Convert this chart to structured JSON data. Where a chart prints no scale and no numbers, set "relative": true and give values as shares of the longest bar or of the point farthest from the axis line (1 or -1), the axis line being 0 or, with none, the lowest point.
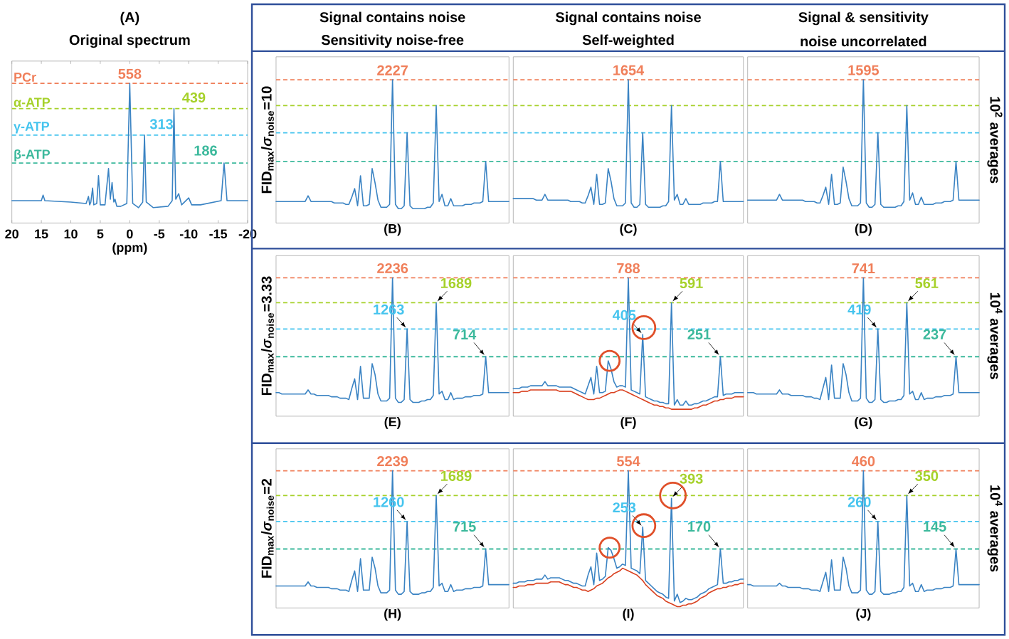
{
  "chart_data": [
    {
      "type": "line",
      "title": "(A)",
      "subtitle": "Original spectrum",
      "xlabel": "(ppm)",
      "relative": true,
      "xlim": [
        20,
        -20
      ],
      "xticks": [
        20,
        15,
        10,
        5,
        0,
        -5,
        -10,
        -15,
        -20
      ],
      "tick_labels": "x",
      "x": [
        20,
        15,
        14.7,
        14.4,
        10,
        7.4,
        7.0,
        6.8,
        6.6,
        6.3,
        6.1,
        5.6,
        5.3,
        5.0,
        4.2,
        3.6,
        3.3,
        3.0,
        2.7,
        2.5,
        2.2,
        1.5,
        0.5,
        0,
        -0.5,
        -1.5,
        -2.2,
        -2.5,
        -2.8,
        -4,
        -6.5,
        -7.2,
        -7.5,
        -7.8,
        -8.3,
        -8.8,
        -10,
        -10.5,
        -12,
        -15.5,
        -16,
        -16.5,
        -18,
        -20
      ],
      "series": [
        {
          "color": "#3a83c3",
          "values": [
            0.16,
            0.16,
            0.2,
            0.16,
            0.15,
            0.14,
            0.19,
            0.13,
            0.15,
            0.25,
            0.13,
            0.14,
            0.34,
            0.13,
            0.13,
            0.39,
            0.17,
            0.29,
            0.15,
            0.17,
            0.12,
            0.12,
            0.14,
            1.0,
            0.14,
            0.11,
            0.15,
            0.63,
            0.15,
            0.11,
            0.12,
            0.16,
            0.82,
            0.17,
            0.21,
            0.13,
            0.18,
            0.13,
            0.13,
            0.16,
            0.43,
            0.16,
            0.16,
            0.16
          ]
        }
      ],
      "ref_lines": [
        {
          "axis": "y",
          "value": 1.0,
          "label": "PCr",
          "color": "#f07f5a",
          "line_style": "dashed"
        },
        {
          "axis": "y",
          "value": 0.82,
          "label": "α-ATP",
          "color": "#a6d12a",
          "line_style": "dashed"
        },
        {
          "axis": "y",
          "value": 0.63,
          "label": "γ-ATP",
          "color": "#45c4ee",
          "line_style": "dashed"
        },
        {
          "axis": "y",
          "value": 0.43,
          "label": "β-ATP",
          "color": "#3cb99c",
          "line_style": "dashed"
        }
      ],
      "annotations": [
        {
          "text": "558",
          "x": 0,
          "y": 1.0
        },
        {
          "text": "439",
          "x": -7.5,
          "y": 0.82
        },
        {
          "text": "313",
          "x": -2.5,
          "y": 0.63
        },
        {
          "text": "186",
          "x": -16,
          "y": 0.43
        }
      ]
    },
    {
      "type": "line",
      "title": "Signal contains noise",
      "subtitle": "Sensitivity noise-free",
      "xlabel": "(B)",
      "ylabel": "FID$_{max}$/*σ*$_{noise}$=10",
      "relative": true,
      "categories": [
        null,
        null,
        null,
        null,
        null,
        null,
        null,
        null,
        null,
        null,
        null,
        null,
        null,
        null,
        null,
        null,
        null,
        null,
        null,
        null,
        null,
        null,
        null,
        null,
        null,
        null,
        null,
        null,
        null,
        null,
        null,
        null,
        null,
        null,
        null,
        null,
        null,
        null,
        null,
        null,
        null,
        null,
        null,
        null,
        null,
        null,
        null,
        null,
        null,
        null,
        null,
        null,
        null,
        null,
        null,
        null,
        null,
        null,
        null,
        null,
        null,
        null,
        null,
        null,
        null,
        null,
        null,
        null,
        null,
        null,
        null,
        null,
        null,
        null,
        null,
        null,
        null,
        null,
        null,
        null,
        null
      ],
      "series": [
        {
          "color": "#3a83c3",
          "values": [
            0.15,
            0.15,
            0.15,
            0.15,
            0.15,
            0.15,
            0.15,
            0.15,
            0.15,
            0.15,
            0.15,
            0.19,
            0.15,
            0.15,
            0.15,
            0.15,
            0.15,
            0.15,
            0.15,
            0.15,
            0.14,
            0.14,
            0.14,
            0.14,
            0.13,
            0.13,
            0.18,
            0.24,
            0.12,
            0.33,
            0.12,
            0.12,
            0.13,
            0.38,
            0.28,
            0.16,
            0.11,
            0.11,
            0.11,
            0.13,
            1.0,
            0.13,
            0.1,
            0.1,
            0.12,
            0.63,
            0.12,
            0.1,
            0.1,
            0.1,
            0.1,
            0.1,
            0.11,
            0.11,
            0.14,
            0.82,
            0.15,
            0.2,
            0.12,
            0.12,
            0.17,
            0.12,
            0.12,
            0.12,
            0.12,
            0.13,
            0.13,
            0.13,
            0.14,
            0.14,
            0.14,
            0.15,
            0.43,
            0.15,
            0.15,
            0.15,
            0.15,
            0.15,
            0.15,
            0.15,
            0.15
          ]
        }
      ],
      "ref_lines": [
        {
          "axis": "y",
          "value": 1.0,
          "color": "#f07f5a",
          "line_style": "dashed"
        },
        {
          "axis": "y",
          "value": 0.82,
          "color": "#a6d12a",
          "line_style": "dashed"
        },
        {
          "axis": "y",
          "value": 0.63,
          "color": "#45c4ee",
          "line_style": "dashed"
        },
        {
          "axis": "y",
          "value": 0.43,
          "color": "#3cb99c",
          "line_style": "dashed"
        }
      ],
      "annotations": [
        {
          "text": "2227",
          "y": 1.0
        }
      ]
    },
    {
      "type": "line",
      "title": "Signal contains noise",
      "subtitle": "Self-weighted",
      "xlabel": "(C)",
      "relative": true,
      "categories": [
        null,
        null,
        null,
        null,
        null,
        null,
        null,
        null,
        null,
        null,
        null,
        null,
        null,
        null,
        null,
        null,
        null,
        null,
        null,
        null,
        null,
        null,
        null,
        null,
        null,
        null,
        null,
        null,
        null,
        null,
        null,
        null,
        null,
        null,
        null,
        null,
        null,
        null,
        null,
        null,
        null,
        null,
        null,
        null,
        null,
        null,
        null,
        null,
        null,
        null,
        null,
        null,
        null,
        null,
        null,
        null,
        null,
        null,
        null,
        null,
        null,
        null,
        null,
        null,
        null,
        null,
        null,
        null,
        null,
        null,
        null,
        null,
        null,
        null,
        null,
        null,
        null,
        null,
        null,
        null,
        null
      ],
      "series": [
        {
          "color": "#3a83c3",
          "values": [
            0.17,
            0.17,
            0.17,
            0.17,
            0.17,
            0.17,
            0.17,
            0.17,
            0.16,
            0.16,
            0.16,
            0.2,
            0.16,
            0.16,
            0.16,
            0.16,
            0.16,
            0.16,
            0.16,
            0.16,
            0.15,
            0.15,
            0.15,
            0.15,
            0.14,
            0.14,
            0.19,
            0.25,
            0.13,
            0.34,
            0.13,
            0.13,
            0.14,
            0.38,
            0.29,
            0.17,
            0.12,
            0.12,
            0.12,
            0.14,
            1.0,
            0.14,
            0.11,
            0.11,
            0.13,
            0.63,
            0.13,
            0.11,
            0.11,
            0.11,
            0.11,
            0.11,
            0.12,
            0.12,
            0.15,
            0.82,
            0.16,
            0.2,
            0.13,
            0.13,
            0.17,
            0.13,
            0.13,
            0.13,
            0.13,
            0.13,
            0.14,
            0.14,
            0.14,
            0.14,
            0.15,
            0.15,
            0.43,
            0.15,
            0.15,
            0.15,
            0.15,
            0.15,
            0.15,
            0.15,
            0.15
          ]
        }
      ],
      "ref_lines": [
        {
          "axis": "y",
          "value": 1.0,
          "color": "#f07f5a",
          "line_style": "dashed"
        },
        {
          "axis": "y",
          "value": 0.82,
          "color": "#a6d12a",
          "line_style": "dashed"
        },
        {
          "axis": "y",
          "value": 0.63,
          "color": "#45c4ee",
          "line_style": "dashed"
        },
        {
          "axis": "y",
          "value": 0.43,
          "color": "#3cb99c",
          "line_style": "dashed"
        }
      ],
      "annotations": [
        {
          "text": "1654",
          "y": 1.0
        }
      ]
    },
    {
      "type": "line",
      "title": "Signal & sensitivity",
      "subtitle": "noise uncorrelated",
      "xlabel": "(D)",
      "y2label": "10$^{2}$ averages",
      "relative": true,
      "categories": [
        null,
        null,
        null,
        null,
        null,
        null,
        null,
        null,
        null,
        null,
        null,
        null,
        null,
        null,
        null,
        null,
        null,
        null,
        null,
        null,
        null,
        null,
        null,
        null,
        null,
        null,
        null,
        null,
        null,
        null,
        null,
        null,
        null,
        null,
        null,
        null,
        null,
        null,
        null,
        null,
        null,
        null,
        null,
        null,
        null,
        null,
        null,
        null,
        null,
        null,
        null,
        null,
        null,
        null,
        null,
        null,
        null,
        null,
        null,
        null,
        null,
        null,
        null,
        null,
        null,
        null,
        null,
        null,
        null,
        null,
        null,
        null,
        null,
        null,
        null,
        null,
        null,
        null,
        null,
        null,
        null
      ],
      "series": [
        {
          "color": "#3a83c3",
          "values": [
            0.16,
            0.16,
            0.16,
            0.16,
            0.16,
            0.16,
            0.16,
            0.16,
            0.16,
            0.16,
            0.16,
            0.2,
            0.16,
            0.16,
            0.16,
            0.16,
            0.16,
            0.16,
            0.16,
            0.16,
            0.15,
            0.15,
            0.15,
            0.15,
            0.14,
            0.14,
            0.19,
            0.25,
            0.13,
            0.34,
            0.13,
            0.13,
            0.14,
            0.39,
            0.29,
            0.17,
            0.12,
            0.12,
            0.12,
            0.14,
            1.0,
            0.14,
            0.11,
            0.11,
            0.13,
            0.63,
            0.13,
            0.11,
            0.11,
            0.11,
            0.11,
            0.11,
            0.12,
            0.12,
            0.15,
            0.82,
            0.16,
            0.21,
            0.13,
            0.13,
            0.18,
            0.13,
            0.13,
            0.13,
            0.13,
            0.14,
            0.14,
            0.14,
            0.15,
            0.15,
            0.15,
            0.16,
            0.43,
            0.16,
            0.16,
            0.16,
            0.16,
            0.16,
            0.16,
            0.16,
            0.16
          ]
        }
      ],
      "ref_lines": [
        {
          "axis": "y",
          "value": 1.0,
          "color": "#f07f5a",
          "line_style": "dashed"
        },
        {
          "axis": "y",
          "value": 0.82,
          "color": "#a6d12a",
          "line_style": "dashed"
        },
        {
          "axis": "y",
          "value": 0.63,
          "color": "#45c4ee",
          "line_style": "dashed"
        },
        {
          "axis": "y",
          "value": 0.43,
          "color": "#3cb99c",
          "line_style": "dashed"
        }
      ],
      "annotations": [
        {
          "text": "1595",
          "y": 1.0
        }
      ]
    },
    {
      "type": "line",
      "xlabel": "(E)",
      "ylabel": "FID$_{max}$/*σ*$_{noise}$=3.33",
      "relative": true,
      "categories": [
        null,
        null,
        null,
        null,
        null,
        null,
        null,
        null,
        null,
        null,
        null,
        null,
        null,
        null,
        null,
        null,
        null,
        null,
        null,
        null,
        null,
        null,
        null,
        null,
        null,
        null,
        null,
        null,
        null,
        null,
        null,
        null,
        null,
        null,
        null,
        null,
        null,
        null,
        null,
        null,
        null,
        null,
        null,
        null,
        null,
        null,
        null,
        null,
        null,
        null,
        null,
        null,
        null,
        null,
        null,
        null,
        null,
        null,
        null,
        null,
        null,
        null,
        null,
        null,
        null,
        null,
        null,
        null,
        null,
        null,
        null,
        null,
        null,
        null,
        null,
        null,
        null,
        null,
        null,
        null,
        null
      ],
      "series": [
        {
          "color": "#3a83c3",
          "values": [
            0.17,
            0.17,
            0.16,
            0.16,
            0.16,
            0.16,
            0.16,
            0.16,
            0.16,
            0.16,
            0.16,
            0.19,
            0.16,
            0.16,
            0.15,
            0.15,
            0.15,
            0.15,
            0.15,
            0.14,
            0.14,
            0.14,
            0.13,
            0.13,
            0.13,
            0.12,
            0.2,
            0.27,
            0.12,
            0.36,
            0.13,
            0.13,
            0.13,
            0.38,
            0.3,
            0.16,
            0.11,
            0.11,
            0.11,
            0.13,
            1.0,
            0.13,
            0.1,
            0.1,
            0.12,
            0.63,
            0.12,
            0.1,
            0.1,
            0.1,
            0.11,
            0.11,
            0.12,
            0.12,
            0.15,
            0.82,
            0.16,
            0.18,
            0.12,
            0.12,
            0.17,
            0.12,
            0.13,
            0.13,
            0.13,
            0.14,
            0.14,
            0.14,
            0.15,
            0.15,
            0.15,
            0.16,
            0.43,
            0.17,
            0.17,
            0.17,
            0.17,
            0.17,
            0.17,
            0.17,
            0.17
          ]
        }
      ],
      "ref_lines": [
        {
          "axis": "y",
          "value": 1.0,
          "color": "#f07f5a",
          "line_style": "dashed"
        },
        {
          "axis": "y",
          "value": 0.82,
          "color": "#a6d12a",
          "line_style": "dashed"
        },
        {
          "axis": "y",
          "value": 0.63,
          "color": "#45c4ee",
          "line_style": "dashed"
        },
        {
          "axis": "y",
          "value": 0.43,
          "color": "#3cb99c",
          "line_style": "dashed"
        }
      ],
      "annotations": [
        {
          "text": "2236",
          "y": 1.0
        },
        {
          "text": "1689",
          "y": 0.82
        },
        {
          "text": "1263",
          "y": 0.63
        },
        {
          "text": "714",
          "y": 0.43
        }
      ]
    },
    {
      "type": "line",
      "xlabel": "(F)",
      "relative": true,
      "categories": [
        null,
        null,
        null,
        null,
        null,
        null,
        null,
        null,
        null,
        null,
        null,
        null,
        null,
        null,
        null,
        null,
        null,
        null,
        null,
        null,
        null,
        null,
        null,
        null,
        null,
        null,
        null,
        null,
        null,
        null,
        null,
        null,
        null,
        null,
        null,
        null,
        null,
        null,
        null,
        null,
        null,
        null,
        null,
        null,
        null,
        null,
        null,
        null,
        null,
        null,
        null,
        null,
        null,
        null,
        null,
        null,
        null,
        null,
        null,
        null,
        null,
        null,
        null,
        null,
        null,
        null,
        null,
        null,
        null,
        null,
        null,
        null,
        null,
        null,
        null,
        null,
        null,
        null,
        null,
        null,
        null
      ],
      "series": [
        {
          "color": "#d9401f",
          "values": [
            0.17,
            0.17,
            0.17,
            0.18,
            0.18,
            0.18,
            0.19,
            0.19,
            0.19,
            0.19,
            0.19,
            0.19,
            0.19,
            0.19,
            0.19,
            0.19,
            0.18,
            0.18,
            0.18,
            0.18,
            0.18,
            0.17,
            0.16,
            0.15,
            0.14,
            0.13,
            0.12,
            0.12,
            0.12,
            0.13,
            0.13,
            0.14,
            0.15,
            0.16,
            0.17,
            0.17,
            0.18,
            0.19,
            0.19,
            0.18,
            0.17,
            0.16,
            0.15,
            0.14,
            0.13,
            0.12,
            0.11,
            0.1,
            0.09,
            0.08,
            0.08,
            0.07,
            0.07,
            0.06,
            0.06,
            0.05,
            0.05,
            0.05,
            0.05,
            0.05,
            0.05,
            0.05,
            0.05,
            0.06,
            0.06,
            0.07,
            0.08,
            0.08,
            0.09,
            0.1,
            0.11,
            0.11,
            0.12,
            0.12,
            0.13,
            0.13,
            0.13,
            0.14,
            0.14,
            0.14,
            0.14
          ]
        },
        {
          "color": "#3a83c3",
          "values": [
            0.2,
            0.2,
            0.2,
            0.21,
            0.21,
            0.21,
            0.22,
            0.22,
            0.22,
            0.22,
            0.22,
            0.25,
            0.22,
            0.22,
            0.22,
            0.22,
            0.21,
            0.21,
            0.21,
            0.21,
            0.21,
            0.2,
            0.19,
            0.18,
            0.17,
            0.16,
            0.22,
            0.28,
            0.16,
            0.36,
            0.17,
            0.17,
            0.18,
            0.4,
            0.34,
            0.25,
            0.21,
            0.22,
            0.22,
            0.21,
            1.0,
            0.19,
            0.18,
            0.17,
            0.16,
            0.59,
            0.14,
            0.13,
            0.12,
            0.11,
            0.11,
            0.1,
            0.1,
            0.09,
            0.09,
            0.82,
            0.08,
            0.12,
            0.08,
            0.08,
            0.11,
            0.08,
            0.08,
            0.09,
            0.09,
            0.1,
            0.11,
            0.11,
            0.12,
            0.13,
            0.14,
            0.14,
            0.43,
            0.15,
            0.16,
            0.16,
            0.16,
            0.17,
            0.17,
            0.17,
            0.17
          ]
        }
      ],
      "ref_lines": [
        {
          "axis": "y",
          "value": 1.0,
          "color": "#f07f5a",
          "line_style": "dashed"
        },
        {
          "axis": "y",
          "value": 0.82,
          "color": "#a6d12a",
          "line_style": "dashed"
        },
        {
          "axis": "y",
          "value": 0.63,
          "color": "#45c4ee",
          "line_style": "dashed"
        },
        {
          "axis": "y",
          "value": 0.43,
          "color": "#3cb99c",
          "line_style": "dashed"
        }
      ],
      "annotations": [
        {
          "text": "788",
          "y": 1.0
        },
        {
          "text": "591",
          "y": 0.82
        },
        {
          "text": "405",
          "y": 0.59
        },
        {
          "text": "251",
          "y": 0.43
        }
      ]
    },
    {
      "type": "line",
      "xlabel": "(G)",
      "y2label": "10$^{4}$ averages",
      "relative": true,
      "categories": [
        null,
        null,
        null,
        null,
        null,
        null,
        null,
        null,
        null,
        null,
        null,
        null,
        null,
        null,
        null,
        null,
        null,
        null,
        null,
        null,
        null,
        null,
        null,
        null,
        null,
        null,
        null,
        null,
        null,
        null,
        null,
        null,
        null,
        null,
        null,
        null,
        null,
        null,
        null,
        null,
        null,
        null,
        null,
        null,
        null,
        null,
        null,
        null,
        null,
        null,
        null,
        null,
        null,
        null,
        null,
        null,
        null,
        null,
        null,
        null,
        null,
        null,
        null,
        null,
        null,
        null,
        null,
        null,
        null,
        null,
        null,
        null,
        null,
        null,
        null,
        null,
        null,
        null,
        null,
        null,
        null
      ],
      "series": [
        {
          "color": "#3a83c3",
          "values": [
            0.17,
            0.17,
            0.17,
            0.16,
            0.16,
            0.16,
            0.16,
            0.16,
            0.16,
            0.16,
            0.16,
            0.19,
            0.16,
            0.16,
            0.16,
            0.15,
            0.15,
            0.15,
            0.15,
            0.15,
            0.14,
            0.14,
            0.14,
            0.13,
            0.13,
            0.12,
            0.2,
            0.28,
            0.12,
            0.37,
            0.13,
            0.13,
            0.13,
            0.38,
            0.3,
            0.17,
            0.11,
            0.11,
            0.11,
            0.13,
            1.0,
            0.13,
            0.1,
            0.1,
            0.12,
            0.63,
            0.12,
            0.1,
            0.1,
            0.11,
            0.11,
            0.11,
            0.12,
            0.12,
            0.15,
            0.82,
            0.16,
            0.18,
            0.12,
            0.12,
            0.17,
            0.12,
            0.13,
            0.13,
            0.13,
            0.14,
            0.14,
            0.14,
            0.15,
            0.15,
            0.15,
            0.16,
            0.43,
            0.17,
            0.17,
            0.17,
            0.17,
            0.17,
            0.17,
            0.17,
            0.17
          ]
        }
      ],
      "ref_lines": [
        {
          "axis": "y",
          "value": 1.0,
          "color": "#f07f5a",
          "line_style": "dashed"
        },
        {
          "axis": "y",
          "value": 0.82,
          "color": "#a6d12a",
          "line_style": "dashed"
        },
        {
          "axis": "y",
          "value": 0.63,
          "color": "#45c4ee",
          "line_style": "dashed"
        },
        {
          "axis": "y",
          "value": 0.43,
          "color": "#3cb99c",
          "line_style": "dashed"
        }
      ],
      "annotations": [
        {
          "text": "741",
          "y": 1.0
        },
        {
          "text": "561",
          "y": 0.82
        },
        {
          "text": "419",
          "y": 0.63
        },
        {
          "text": "237",
          "y": 0.43
        }
      ]
    },
    {
      "type": "line",
      "xlabel": "(H)",
      "ylabel": "FID$_{max}$/*σ*$_{noise}$=2",
      "relative": true,
      "categories": [
        null,
        null,
        null,
        null,
        null,
        null,
        null,
        null,
        null,
        null,
        null,
        null,
        null,
        null,
        null,
        null,
        null,
        null,
        null,
        null,
        null,
        null,
        null,
        null,
        null,
        null,
        null,
        null,
        null,
        null,
        null,
        null,
        null,
        null,
        null,
        null,
        null,
        null,
        null,
        null,
        null,
        null,
        null,
        null,
        null,
        null,
        null,
        null,
        null,
        null,
        null,
        null,
        null,
        null,
        null,
        null,
        null,
        null,
        null,
        null,
        null,
        null,
        null,
        null,
        null,
        null,
        null,
        null,
        null,
        null,
        null,
        null,
        null,
        null,
        null,
        null,
        null,
        null,
        null,
        null,
        null
      ],
      "series": [
        {
          "color": "#3a83c3",
          "values": [
            0.16,
            0.16,
            0.16,
            0.16,
            0.16,
            0.16,
            0.16,
            0.16,
            0.16,
            0.16,
            0.16,
            0.19,
            0.16,
            0.16,
            0.15,
            0.15,
            0.15,
            0.15,
            0.15,
            0.14,
            0.14,
            0.14,
            0.13,
            0.13,
            0.13,
            0.12,
            0.2,
            0.27,
            0.12,
            0.36,
            0.13,
            0.13,
            0.13,
            0.37,
            0.29,
            0.16,
            0.11,
            0.11,
            0.11,
            0.13,
            1.0,
            0.13,
            0.1,
            0.1,
            0.12,
            0.63,
            0.12,
            0.1,
            0.1,
            0.1,
            0.11,
            0.11,
            0.12,
            0.12,
            0.15,
            0.82,
            0.16,
            0.18,
            0.12,
            0.12,
            0.17,
            0.12,
            0.13,
            0.13,
            0.13,
            0.14,
            0.14,
            0.14,
            0.15,
            0.15,
            0.15,
            0.16,
            0.43,
            0.17,
            0.17,
            0.17,
            0.17,
            0.17,
            0.17,
            0.17,
            0.17
          ]
        }
      ],
      "ref_lines": [
        {
          "axis": "y",
          "value": 1.0,
          "color": "#f07f5a",
          "line_style": "dashed"
        },
        {
          "axis": "y",
          "value": 0.82,
          "color": "#a6d12a",
          "line_style": "dashed"
        },
        {
          "axis": "y",
          "value": 0.63,
          "color": "#45c4ee",
          "line_style": "dashed"
        },
        {
          "axis": "y",
          "value": 0.43,
          "color": "#3cb99c",
          "line_style": "dashed"
        }
      ],
      "annotations": [
        {
          "text": "2239",
          "y": 1.0
        },
        {
          "text": "1689",
          "y": 0.82
        },
        {
          "text": "1260",
          "y": 0.63
        },
        {
          "text": "715",
          "y": 0.43
        }
      ]
    },
    {
      "type": "line",
      "xlabel": "(I)",
      "relative": true,
      "categories": [
        null,
        null,
        null,
        null,
        null,
        null,
        null,
        null,
        null,
        null,
        null,
        null,
        null,
        null,
        null,
        null,
        null,
        null,
        null,
        null,
        null,
        null,
        null,
        null,
        null,
        null,
        null,
        null,
        null,
        null,
        null,
        null,
        null,
        null,
        null,
        null,
        null,
        null,
        null,
        null,
        null,
        null,
        null,
        null,
        null,
        null,
        null,
        null,
        null,
        null,
        null,
        null,
        null,
        null,
        null,
        null,
        null,
        null,
        null,
        null,
        null,
        null,
        null,
        null,
        null,
        null,
        null,
        null,
        null,
        null,
        null,
        null,
        null,
        null,
        null,
        null,
        null,
        null,
        null,
        null,
        null
      ],
      "series": [
        {
          "color": "#d9401f",
          "values": [
            0.15,
            0.15,
            0.16,
            0.16,
            0.16,
            0.17,
            0.17,
            0.17,
            0.18,
            0.18,
            0.18,
            0.18,
            0.18,
            0.19,
            0.19,
            0.19,
            0.19,
            0.18,
            0.17,
            0.17,
            0.16,
            0.15,
            0.15,
            0.14,
            0.13,
            0.13,
            0.12,
            0.13,
            0.14,
            0.16,
            0.17,
            0.18,
            0.2,
            0.22,
            0.23,
            0.25,
            0.26,
            0.27,
            0.29,
            0.28,
            0.27,
            0.26,
            0.25,
            0.24,
            0.22,
            0.2,
            0.17,
            0.15,
            0.13,
            0.11,
            0.09,
            0.08,
            0.07,
            0.05,
            0.04,
            0.03,
            0.02,
            0.01,
            0.01,
            0.02,
            0.02,
            0.03,
            0.03,
            0.04,
            0.05,
            0.07,
            0.08,
            0.09,
            0.11,
            0.12,
            0.13,
            0.14,
            0.14,
            0.15,
            0.15,
            0.16,
            0.16,
            0.17,
            0.17,
            0.18,
            0.18
          ]
        },
        {
          "color": "#3a83c3",
          "values": [
            0.18,
            0.18,
            0.19,
            0.19,
            0.19,
            0.2,
            0.2,
            0.2,
            0.21,
            0.21,
            0.21,
            0.24,
            0.21,
            0.22,
            0.22,
            0.22,
            0.22,
            0.21,
            0.2,
            0.2,
            0.19,
            0.18,
            0.18,
            0.17,
            0.16,
            0.16,
            0.24,
            0.3,
            0.17,
            0.4,
            0.2,
            0.21,
            0.23,
            0.44,
            0.42,
            0.36,
            0.29,
            0.3,
            0.32,
            0.31,
            1.0,
            0.29,
            0.28,
            0.27,
            0.25,
            0.59,
            0.2,
            0.18,
            0.16,
            0.14,
            0.12,
            0.11,
            0.1,
            0.08,
            0.07,
            0.8,
            0.05,
            0.1,
            0.04,
            0.05,
            0.07,
            0.06,
            0.06,
            0.07,
            0.08,
            0.1,
            0.11,
            0.12,
            0.14,
            0.15,
            0.16,
            0.17,
            0.43,
            0.18,
            0.18,
            0.19,
            0.19,
            0.2,
            0.2,
            0.21,
            0.21
          ]
        }
      ],
      "ref_lines": [
        {
          "axis": "y",
          "value": 1.0,
          "color": "#f07f5a",
          "line_style": "dashed"
        },
        {
          "axis": "y",
          "value": 0.82,
          "color": "#a6d12a",
          "line_style": "dashed"
        },
        {
          "axis": "y",
          "value": 0.63,
          "color": "#45c4ee",
          "line_style": "dashed"
        },
        {
          "axis": "y",
          "value": 0.43,
          "color": "#3cb99c",
          "line_style": "dashed"
        }
      ],
      "annotations": [
        {
          "text": "554",
          "y": 1.0
        },
        {
          "text": "393",
          "y": 0.8
        },
        {
          "text": "253",
          "y": 0.59
        },
        {
          "text": "170",
          "y": 0.43
        }
      ]
    },
    {
      "type": "line",
      "xlabel": "(J)",
      "y2label": "10$^{4}$ averages",
      "relative": true,
      "categories": [
        null,
        null,
        null,
        null,
        null,
        null,
        null,
        null,
        null,
        null,
        null,
        null,
        null,
        null,
        null,
        null,
        null,
        null,
        null,
        null,
        null,
        null,
        null,
        null,
        null,
        null,
        null,
        null,
        null,
        null,
        null,
        null,
        null,
        null,
        null,
        null,
        null,
        null,
        null,
        null,
        null,
        null,
        null,
        null,
        null,
        null,
        null,
        null,
        null,
        null,
        null,
        null,
        null,
        null,
        null,
        null,
        null,
        null,
        null,
        null,
        null,
        null,
        null,
        null,
        null,
        null,
        null,
        null,
        null,
        null,
        null,
        null,
        null,
        null,
        null,
        null,
        null,
        null,
        null,
        null,
        null
      ],
      "series": [
        {
          "color": "#3a83c3",
          "values": [
            0.17,
            0.17,
            0.16,
            0.16,
            0.16,
            0.16,
            0.16,
            0.16,
            0.16,
            0.16,
            0.16,
            0.18,
            0.16,
            0.16,
            0.15,
            0.15,
            0.15,
            0.15,
            0.15,
            0.14,
            0.14,
            0.14,
            0.13,
            0.13,
            0.13,
            0.12,
            0.19,
            0.26,
            0.12,
            0.35,
            0.13,
            0.13,
            0.13,
            0.37,
            0.29,
            0.16,
            0.11,
            0.11,
            0.11,
            0.13,
            1.0,
            0.13,
            0.1,
            0.1,
            0.12,
            0.63,
            0.12,
            0.1,
            0.1,
            0.1,
            0.11,
            0.11,
            0.12,
            0.12,
            0.15,
            0.82,
            0.16,
            0.18,
            0.12,
            0.12,
            0.17,
            0.12,
            0.13,
            0.13,
            0.13,
            0.14,
            0.14,
            0.14,
            0.15,
            0.15,
            0.15,
            0.16,
            0.43,
            0.17,
            0.17,
            0.17,
            0.17,
            0.17,
            0.17,
            0.17,
            0.17
          ]
        }
      ],
      "ref_lines": [
        {
          "axis": "y",
          "value": 1.0,
          "color": "#f07f5a",
          "line_style": "dashed"
        },
        {
          "axis": "y",
          "value": 0.82,
          "color": "#a6d12a",
          "line_style": "dashed"
        },
        {
          "axis": "y",
          "value": 0.63,
          "color": "#45c4ee",
          "line_style": "dashed"
        },
        {
          "axis": "y",
          "value": 0.43,
          "color": "#3cb99c",
          "line_style": "dashed"
        }
      ],
      "annotations": [
        {
          "text": "460",
          "y": 1.0
        },
        {
          "text": "350",
          "y": 0.82
        },
        {
          "text": "260",
          "y": 0.63
        },
        {
          "text": "145",
          "y": 0.43
        }
      ]
    }
  ]
}
